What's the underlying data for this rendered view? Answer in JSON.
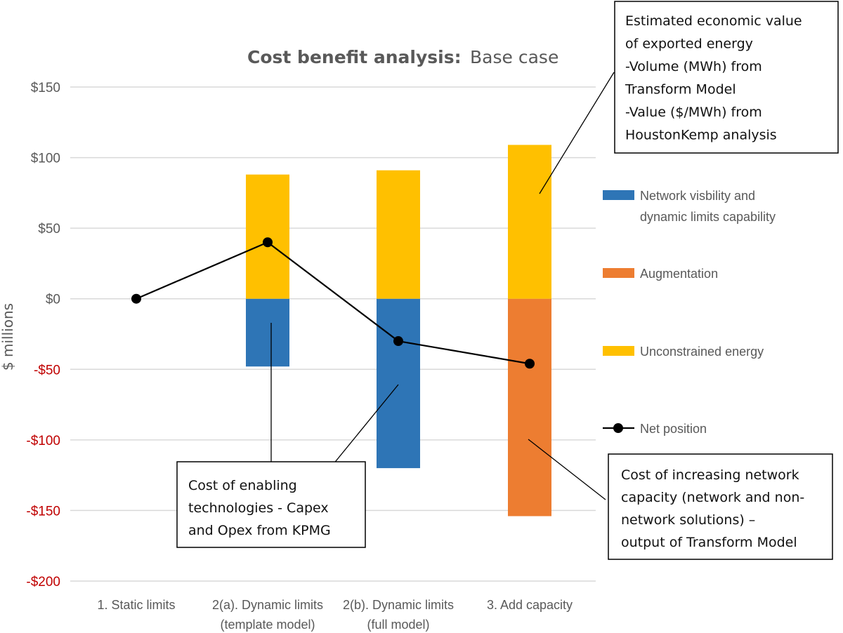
{
  "chart_data": {
    "type": "bar",
    "stacked": true,
    "title_bold": "Cost benefit analysis:",
    "title_rest": "Base case",
    "ylabel": "$ millions",
    "ylim": [
      -200,
      150
    ],
    "grid": true,
    "yticks": [
      {
        "value": 150,
        "label": "$150"
      },
      {
        "value": 100,
        "label": "$100"
      },
      {
        "value": 50,
        "label": "$50"
      },
      {
        "value": 0,
        "label": "$0"
      },
      {
        "value": -50,
        "label": "-$50"
      },
      {
        "value": -100,
        "label": "-$100"
      },
      {
        "value": -150,
        "label": "-$150"
      },
      {
        "value": -200,
        "label": "-$200"
      }
    ],
    "categories": [
      [
        "1. Static limits"
      ],
      [
        "2(a). Dynamic limits",
        "(template model)"
      ],
      [
        "2(b). Dynamic limits",
        "(full model)"
      ],
      [
        "3. Add capacity"
      ]
    ],
    "series": [
      {
        "name": "Network visbility and dynamic limits capability",
        "legend_lines": [
          "Network visbility and",
          "dynamic limits capability"
        ],
        "color": "#2e75b6",
        "values": [
          0,
          -48,
          -120,
          0
        ]
      },
      {
        "name": "Augmentation",
        "legend_lines": [
          "Augmentation"
        ],
        "color": "#ed7d31",
        "values": [
          0,
          0,
          0,
          -154
        ]
      },
      {
        "name": "Unconstrained energy",
        "legend_lines": [
          "Unconstrained energy"
        ],
        "color": "#ffc000",
        "values": [
          0,
          88,
          91,
          109
        ]
      },
      {
        "name": "Net position",
        "legend_lines": [
          "Net position"
        ],
        "color": "#000000",
        "kind": "line",
        "values": [
          0,
          40,
          -30,
          -46
        ]
      }
    ],
    "annotations": [
      {
        "id": "export",
        "lines": [
          "Estimated economic value",
          "of exported energy",
          "-Volume (MWh) from",
          "Transform  Model",
          "-Value ($/MWh) from",
          "HoustonKemp analysis"
        ]
      },
      {
        "id": "enabling",
        "lines": [
          "Cost of enabling",
          "technologies - Capex",
          "and Opex from KPMG"
        ]
      },
      {
        "id": "capacity",
        "lines": [
          "Cost of increasing network",
          "capacity (network and non-",
          "network solutions) –",
          "output of Transform Model"
        ]
      }
    ],
    "negative_tick_color": "#c00000",
    "positive_tick_color": "#595959"
  }
}
